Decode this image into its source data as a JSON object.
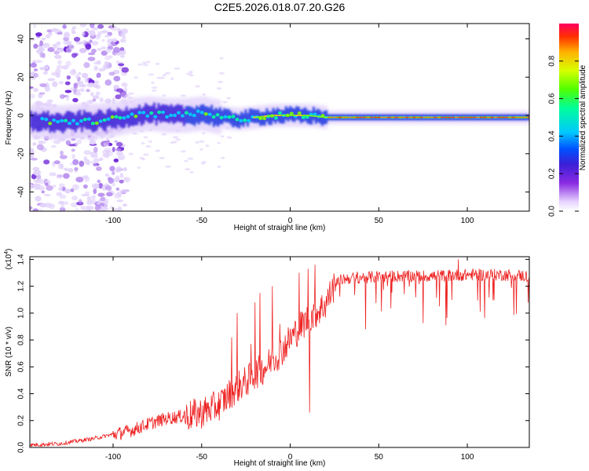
{
  "title": "C2E5.2026.018.07.20.G26",
  "chart_data": [
    {
      "type": "heatmap",
      "xlabel": "Height of straight line (km)",
      "ylabel": "Frequency (Hz)",
      "xlim": [
        -147,
        135
      ],
      "ylim": [
        -50,
        48
      ],
      "xticks": [
        -100,
        -50,
        0,
        50,
        100
      ],
      "xtick_labels": [
        "-100",
        "-50",
        "0",
        "50",
        "100"
      ],
      "yticks": [
        -40,
        -20,
        0,
        20,
        40
      ],
      "ytick_labels": [
        "-40",
        "-20",
        "0",
        "20",
        "40"
      ],
      "colorbar": {
        "label": "Normalized spectral amplitude",
        "range": [
          0,
          1
        ],
        "ticks": [
          0.0,
          0.2,
          0.4,
          0.6,
          0.8
        ],
        "tick_labels": [
          "0.0",
          "0.2",
          "0.4",
          "0.6",
          "0.8"
        ]
      },
      "ridge_center_hz": [
        [
          -140,
          -3
        ],
        [
          -130,
          -4
        ],
        [
          -120,
          -3
        ],
        [
          -110,
          -3
        ],
        [
          -100,
          -2
        ],
        [
          -90,
          0
        ],
        [
          -80,
          1
        ],
        [
          -70,
          0
        ],
        [
          -60,
          0
        ],
        [
          -50,
          1
        ],
        [
          -40,
          -1
        ],
        [
          -30,
          -2
        ],
        [
          -20,
          -1
        ],
        [
          -10,
          0
        ],
        [
          0,
          0
        ],
        [
          10,
          0
        ],
        [
          20,
          -1
        ],
        [
          40,
          -1
        ],
        [
          60,
          -1
        ],
        [
          80,
          -1
        ],
        [
          100,
          -1
        ],
        [
          120,
          -1
        ],
        [
          135,
          -1
        ]
      ]
    },
    {
      "type": "line",
      "xlabel": "Height of straight line (km)",
      "ylabel": "SNR (10 * v/v)",
      "exponent_label": "(x10",
      "exponent": "4",
      "exponent_suffix": ")",
      "xlim": [
        -147,
        135
      ],
      "ylim": [
        0,
        1.42
      ],
      "xticks": [
        -100,
        -50,
        0,
        50,
        100
      ],
      "xtick_labels": [
        "-100",
        "-50",
        "0",
        "50",
        "100"
      ],
      "yticks": [
        0,
        0.2,
        0.4,
        0.6,
        0.8,
        1.0,
        1.2,
        1.4
      ],
      "ytick_labels": [
        "0.0",
        "0.2",
        "0.4",
        "0.6",
        "0.8",
        "1.0",
        "1.2",
        "1.4"
      ],
      "line_color": "#ee2222",
      "trend": [
        [
          -147,
          0.02
        ],
        [
          -130,
          0.03
        ],
        [
          -120,
          0.05
        ],
        [
          -110,
          0.07
        ],
        [
          -100,
          0.1
        ],
        [
          -90,
          0.13
        ],
        [
          -80,
          0.18
        ],
        [
          -70,
          0.22
        ],
        [
          -60,
          0.24
        ],
        [
          -50,
          0.27
        ],
        [
          -40,
          0.33
        ],
        [
          -35,
          0.4
        ],
        [
          -30,
          0.46
        ],
        [
          -25,
          0.5
        ],
        [
          -20,
          0.56
        ],
        [
          -15,
          0.6
        ],
        [
          -10,
          0.66
        ],
        [
          -5,
          0.73
        ],
        [
          0,
          0.82
        ],
        [
          5,
          0.9
        ],
        [
          10,
          0.97
        ],
        [
          15,
          1.02
        ],
        [
          20,
          1.08
        ],
        [
          25,
          1.22
        ],
        [
          30,
          1.26
        ],
        [
          40,
          1.27
        ],
        [
          60,
          1.28
        ],
        [
          80,
          1.28
        ],
        [
          100,
          1.29
        ],
        [
          120,
          1.29
        ],
        [
          135,
          1.28
        ]
      ],
      "spikes": [
        [
          -33,
          0.82
        ],
        [
          -30,
          1.0
        ],
        [
          -22,
          0.77
        ],
        [
          -20,
          1.08
        ],
        [
          -17,
          1.15
        ],
        [
          -10,
          1.2
        ],
        [
          -6,
          0.92
        ],
        [
          5,
          1.3
        ],
        [
          10,
          1.33
        ],
        [
          11,
          0.26
        ],
        [
          14,
          1.36
        ],
        [
          22,
          1.18
        ],
        [
          55,
          1.2
        ],
        [
          95,
          1.4
        ]
      ]
    }
  ]
}
